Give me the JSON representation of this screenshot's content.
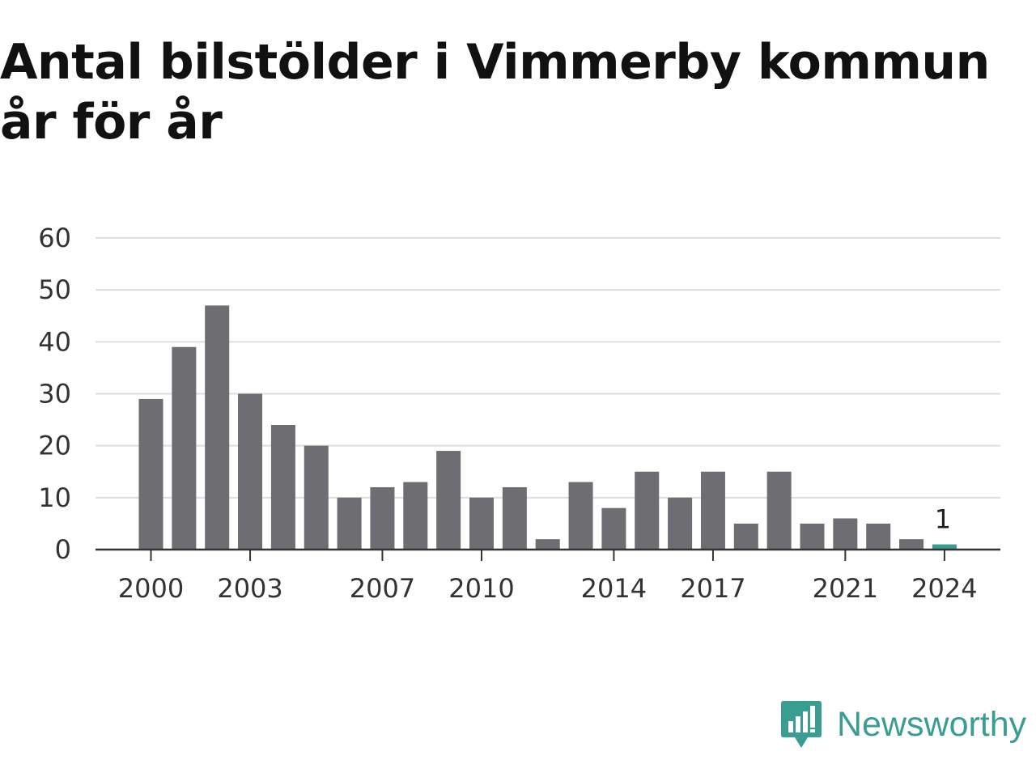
{
  "title": "Antal bilstölder i Vimmerby kommun år för år",
  "brand": {
    "name": "Newsworthy",
    "logo_icon": "newsworthy-bar-chart-speech-bubble-icon",
    "color": "#3a9d92"
  },
  "chart_data": {
    "type": "bar",
    "title": "Antal bilstölder i Vimmerby kommun år för år",
    "xlabel": "",
    "ylabel": "",
    "categories": [
      2000,
      2001,
      2002,
      2003,
      2004,
      2005,
      2006,
      2007,
      2008,
      2009,
      2010,
      2011,
      2012,
      2013,
      2014,
      2015,
      2016,
      2017,
      2018,
      2019,
      2020,
      2021,
      2022,
      2023,
      2024
    ],
    "values": [
      29,
      39,
      47,
      30,
      24,
      20,
      10,
      12,
      13,
      19,
      10,
      12,
      2,
      13,
      8,
      15,
      10,
      15,
      5,
      15,
      5,
      6,
      5,
      2,
      1
    ],
    "ylim": [
      0,
      60
    ],
    "y_ticks": [
      0,
      10,
      20,
      30,
      40,
      50,
      60
    ],
    "x_tick_labels": [
      2000,
      2003,
      2007,
      2010,
      2014,
      2017,
      2021,
      2024
    ],
    "grid": true,
    "bar_color": "#6e6d72",
    "highlight": {
      "category": 2024,
      "color": "#3a9d92",
      "label": "1"
    }
  }
}
